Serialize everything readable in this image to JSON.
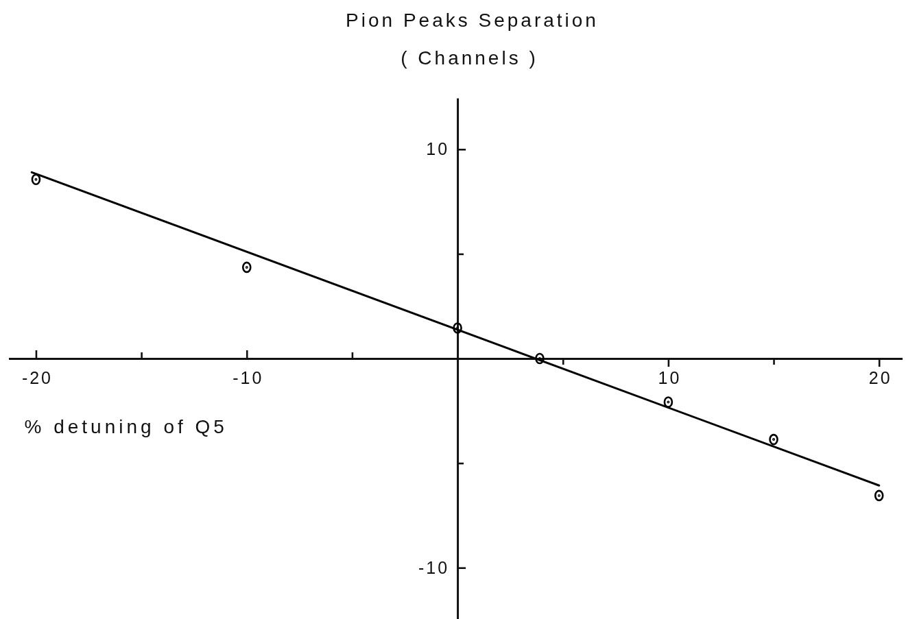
{
  "chart_data": {
    "type": "scatter",
    "title": "Pion Peaks Separation",
    "subtitle": "( Channels )",
    "xlabel": "% detuning of Q5",
    "series": [
      {
        "x": [
          -20,
          -10,
          0,
          3.9,
          10,
          15,
          20
        ],
        "values": [
          8.56,
          4.36,
          1.46,
          0,
          -2.08,
          -3.87,
          -6.55
        ],
        "color": "#000000",
        "marker": "circle"
      },
      {
        "type": "line",
        "x": [
          -20.2,
          20
        ],
        "values": [
          8.9,
          -6.07
        ],
        "color": "#000000",
        "line_style": "solid"
      }
    ],
    "xlim": [
      -21.3,
      21.1
    ],
    "ylim": [
      -12.45,
      12.45
    ],
    "xticks": [
      -20,
      {
        "value": -15,
        "label": null
      },
      -10,
      {
        "value": -5,
        "label": null
      },
      {
        "value": 5,
        "label": null
      },
      10,
      {
        "value": 15,
        "label": null
      },
      20
    ],
    "yticks": [
      -10,
      {
        "value": -5,
        "label": null
      },
      {
        "value": 5,
        "label": null
      },
      10
    ]
  }
}
